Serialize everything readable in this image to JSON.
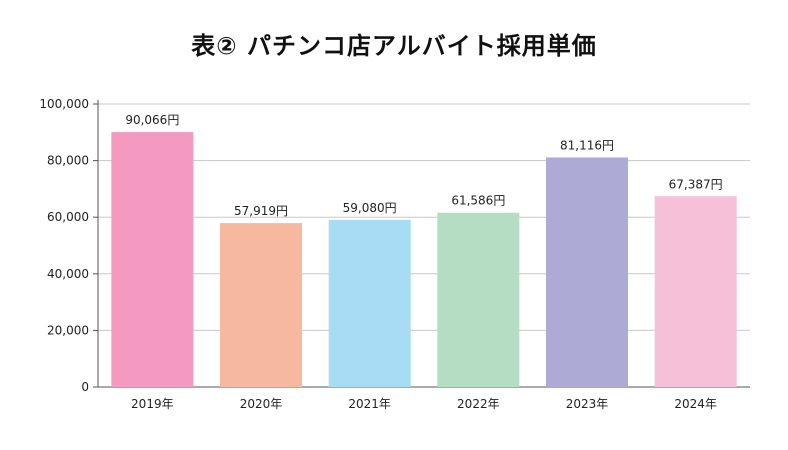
{
  "chart_data": {
    "type": "bar",
    "title": "表② パチンコ店アルバイト採用単価",
    "categories": [
      "2019年",
      "2020年",
      "2021年",
      "2022年",
      "2023年",
      "2024年"
    ],
    "values": [
      90066,
      57919,
      59080,
      61586,
      81116,
      67387
    ],
    "data_labels": [
      "90,066円",
      "57,919円",
      "59,080円",
      "61,586円",
      "81,116円",
      "67,387円"
    ],
    "bar_colors": [
      "#f49ac1",
      "#f7b8a0",
      "#a8dcf5",
      "#b4ddc4",
      "#aeaad6",
      "#f5c0d8"
    ],
    "ylim": [
      0,
      100000
    ],
    "yticks": [
      0,
      20000,
      40000,
      60000,
      80000,
      100000
    ],
    "ytick_labels": [
      "0",
      "20,000",
      "40,000",
      "60,000",
      "80,000",
      "100,000"
    ],
    "xlabel": "",
    "ylabel": "",
    "grid": true,
    "legend": "none"
  }
}
